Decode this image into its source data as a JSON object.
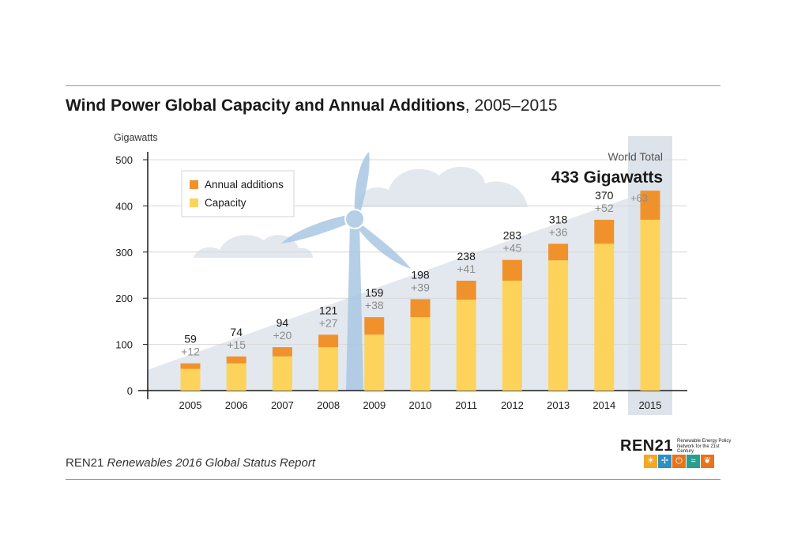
{
  "title": {
    "bold": "Wind Power Global Capacity and Annual Additions",
    "light": ", 2005–2015"
  },
  "source": {
    "org": "REN21",
    "publication": "Renewables 2016 Global Status Report"
  },
  "logo": {
    "wordmark": "REN21",
    "tagline": "Renewable Energy Policy Network for the 21st Century",
    "icon_colors": [
      "#f5a623",
      "#2e8fc2",
      "#e8731a",
      "#2a9d8f",
      "#e8731a"
    ]
  },
  "colors": {
    "capacity": "#fdd35c",
    "additions": "#f0922b",
    "background_area": "#e3e8ee",
    "turbine": "#a9c7e3",
    "highlight_column": "#dde3ea",
    "axis": "#1a1a1a",
    "grid": "#d8d8d8",
    "addition_label": "#8a8a8a"
  },
  "chart_data": {
    "type": "bar",
    "stacked": true,
    "ylabel": "Gigawatts",
    "ylim": [
      0,
      500
    ],
    "yticks": [
      0,
      100,
      200,
      300,
      400,
      500
    ],
    "grid": true,
    "legend_position": "top-left",
    "categories": [
      "2005",
      "2006",
      "2007",
      "2008",
      "2009",
      "2010",
      "2011",
      "2012",
      "2013",
      "2014",
      "2015"
    ],
    "totals": [
      59,
      74,
      94,
      121,
      159,
      198,
      238,
      283,
      318,
      370,
      433
    ],
    "series": [
      {
        "name": "Capacity",
        "values": [
          47,
          59,
          74,
          94,
          121,
          159,
          197,
          238,
          282,
          318,
          370
        ]
      },
      {
        "name": "Annual additions",
        "values": [
          12,
          15,
          20,
          27,
          38,
          39,
          41,
          45,
          36,
          52,
          63
        ]
      }
    ],
    "total_labels": [
      "59",
      "74",
      "94",
      "121",
      "159",
      "198",
      "238",
      "283",
      "318",
      "370"
    ],
    "addition_labels": [
      "+12",
      "+15",
      "+20",
      "+27",
      "+38",
      "+39",
      "+41",
      "+45",
      "+36",
      "+52",
      "+63"
    ],
    "highlight_category": "2015",
    "annotation": {
      "label": "World Total",
      "value": "433 Gigawatts"
    }
  }
}
